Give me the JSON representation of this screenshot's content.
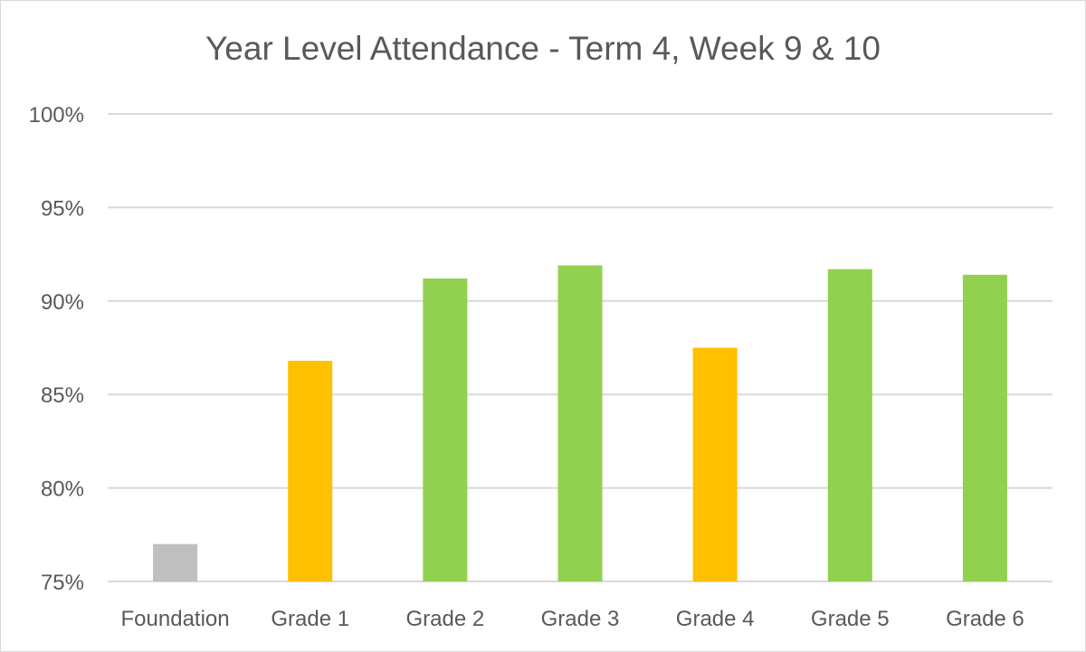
{
  "chart_data": {
    "type": "bar",
    "title": "Year Level Attendance - Term 4, Week 9 & 10",
    "xlabel": "",
    "ylabel": "",
    "categories": [
      "Foundation",
      "Grade 1",
      "Grade 2",
      "Grade 3",
      "Grade 4",
      "Grade 5",
      "Grade 6"
    ],
    "values": [
      77.0,
      86.8,
      91.2,
      91.9,
      87.5,
      91.7,
      91.4
    ],
    "bar_colors": [
      "#bfbfbf",
      "#ffc000",
      "#92d050",
      "#92d050",
      "#ffc000",
      "#92d050",
      "#92d050"
    ],
    "ylim": [
      75,
      100
    ],
    "yticks": [
      75,
      80,
      85,
      90,
      95,
      100
    ],
    "ytick_labels": [
      "75%",
      "80%",
      "85%",
      "90%",
      "95%",
      "100%"
    ],
    "grid": true,
    "legend": "none"
  },
  "colors": {
    "grid": "#d9d9d9",
    "text": "#595959"
  }
}
